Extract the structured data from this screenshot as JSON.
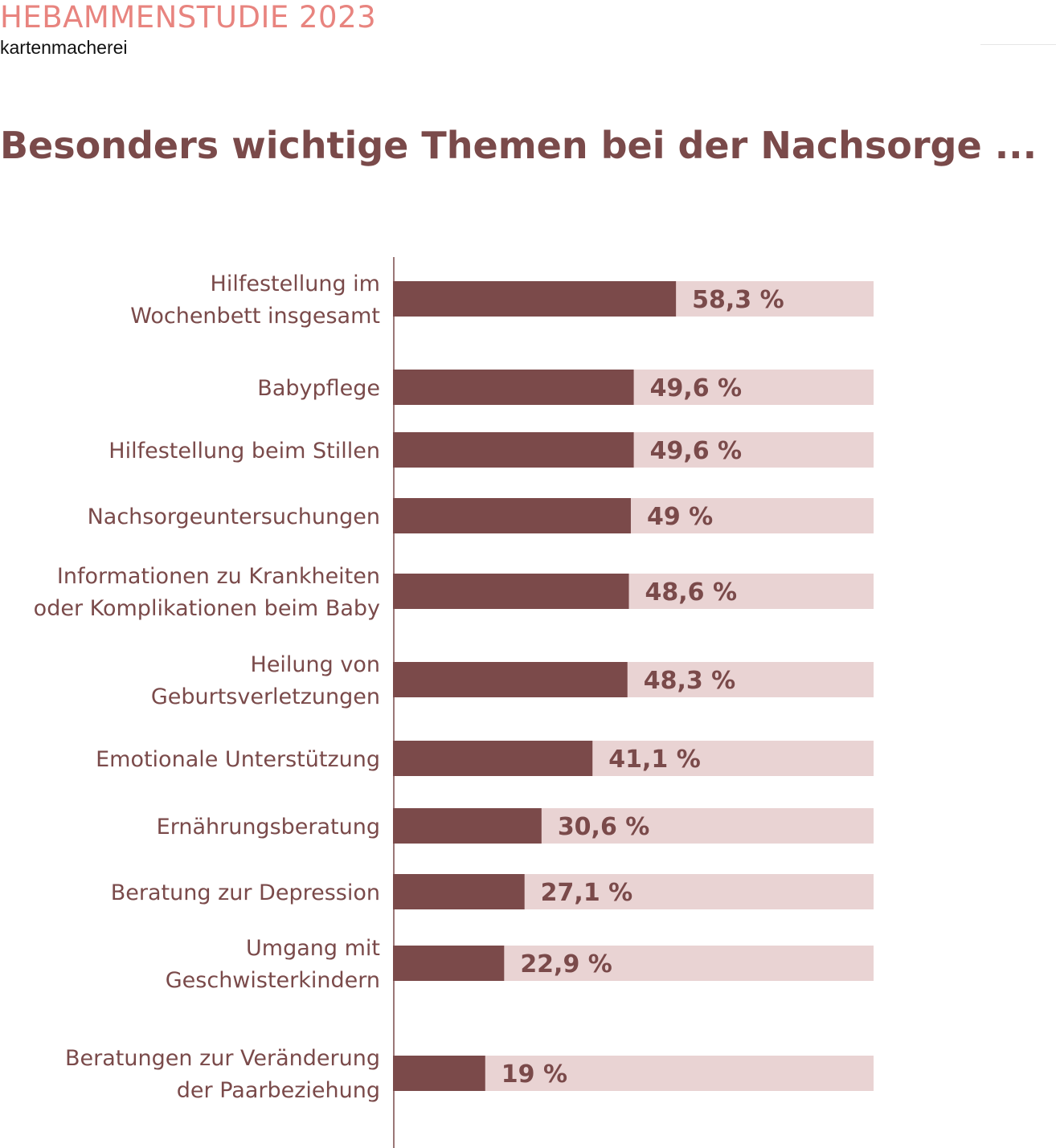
{
  "header": {
    "kicker": "HEBAMMENSTUDIE 2023",
    "brand": "kartenmacherei"
  },
  "colors": {
    "kicker": "#e8847f",
    "text": "#7a4a4a",
    "bar": "#7b4a4a",
    "track": "#e9d3d3",
    "axis": "#7a4a4a"
  },
  "chart_data": {
    "type": "bar",
    "orientation": "horizontal",
    "title": "Besonders wichtige Themen bei der Nachsorge ...",
    "xlabel": "",
    "ylabel": "",
    "xlim": [
      0,
      100
    ],
    "grid": false,
    "legend": "none",
    "unit": "%",
    "categories": [
      [
        "Hilfestellung im",
        "Wochenbett insgesamt"
      ],
      [
        "Babypflege"
      ],
      [
        "Hilfestellung beim Stillen"
      ],
      [
        "Nachsorgeuntersuchungen"
      ],
      [
        "Informationen zu Krankheiten",
        "oder Komplikationen beim Baby"
      ],
      [
        "Heilung von",
        "Geburtsverletzungen"
      ],
      [
        "Emotionale Unterstützung"
      ],
      [
        "Ernährungsberatung"
      ],
      [
        "Beratung zur Depression"
      ],
      [
        "Umgang mit",
        "Geschwisterkindern"
      ],
      [
        "Beratungen zur Veränderung",
        "der Paarbeziehung"
      ]
    ],
    "values": [
      58.3,
      49.6,
      49.6,
      49,
      48.6,
      48.3,
      41.1,
      30.6,
      27.1,
      22.9,
      19
    ],
    "value_labels": [
      "58,3 %",
      "49,6 %",
      "49,6 %",
      "49 %",
      "48,6 %",
      "48,3 %",
      "41,1 %",
      "30,6 %",
      "27,1 %",
      "22,9 %",
      "19 %"
    ]
  }
}
